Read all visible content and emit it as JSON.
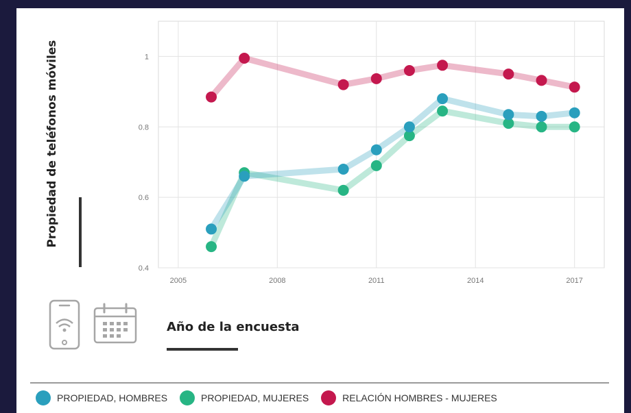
{
  "chart_data": {
    "type": "line",
    "x": [
      2006,
      2007,
      2010,
      2011,
      2012,
      2013,
      2015,
      2016,
      2017
    ],
    "series": [
      {
        "name": "PROPIEDAD, HOMBRES",
        "color": "#2a9fbd",
        "values": [
          0.51,
          0.66,
          0.68,
          0.735,
          0.8,
          0.88,
          0.835,
          0.83,
          0.84
        ]
      },
      {
        "name": "PROPIEDAD, MUJERES",
        "color": "#27b584",
        "values": [
          0.46,
          0.67,
          0.62,
          0.69,
          0.775,
          0.845,
          0.81,
          0.8,
          0.8
        ]
      },
      {
        "name": "RELACIÓN HOMBRES - MUJERES",
        "color": "#c4184e",
        "values": [
          0.885,
          0.995,
          0.92,
          0.937,
          0.96,
          0.975,
          0.95,
          0.932,
          0.913
        ]
      }
    ],
    "xticks": [
      2005,
      2008,
      2011,
      2014,
      2017
    ],
    "yticks": [
      0.4,
      0.6,
      0.8,
      1.0
    ],
    "ytick_labels": [
      "0.4",
      "0.6",
      "0.8",
      "1"
    ],
    "xlim": [
      2004.4,
      2017.9
    ],
    "ylim": [
      0.4,
      1.1
    ],
    "xlabel": "Año de la encuesta",
    "ylabel": "Propiedad de teléfonos móviles",
    "grid": true,
    "legend": "bottom"
  },
  "icons": [
    "smartphone-wifi-icon",
    "calendar-icon"
  ]
}
